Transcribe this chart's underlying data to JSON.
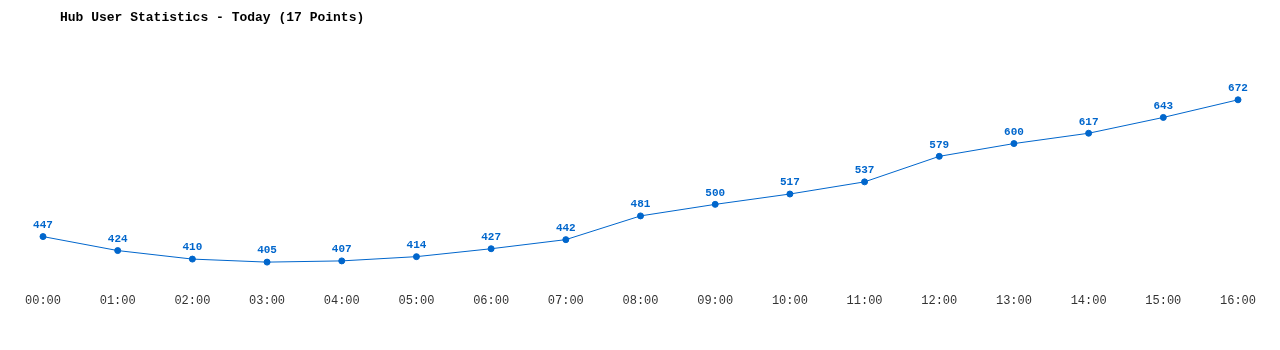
{
  "chart_data": {
    "type": "line",
    "title": "Hub User Statistics - Today (17 Points)",
    "categories": [
      "00:00",
      "01:00",
      "02:00",
      "03:00",
      "04:00",
      "05:00",
      "06:00",
      "07:00",
      "08:00",
      "09:00",
      "10:00",
      "11:00",
      "12:00",
      "13:00",
      "14:00",
      "15:00",
      "16:00"
    ],
    "series": [
      {
        "color": "#0066cc",
        "values": [
          447,
          424,
          410,
          405,
          407,
          414,
          427,
          442,
          481,
          500,
          517,
          537,
          579,
          600,
          617,
          643,
          672
        ]
      }
    ],
    "data_labels": true,
    "marker": "circle",
    "grid": false,
    "legend": false,
    "tick_labels": "x"
  }
}
